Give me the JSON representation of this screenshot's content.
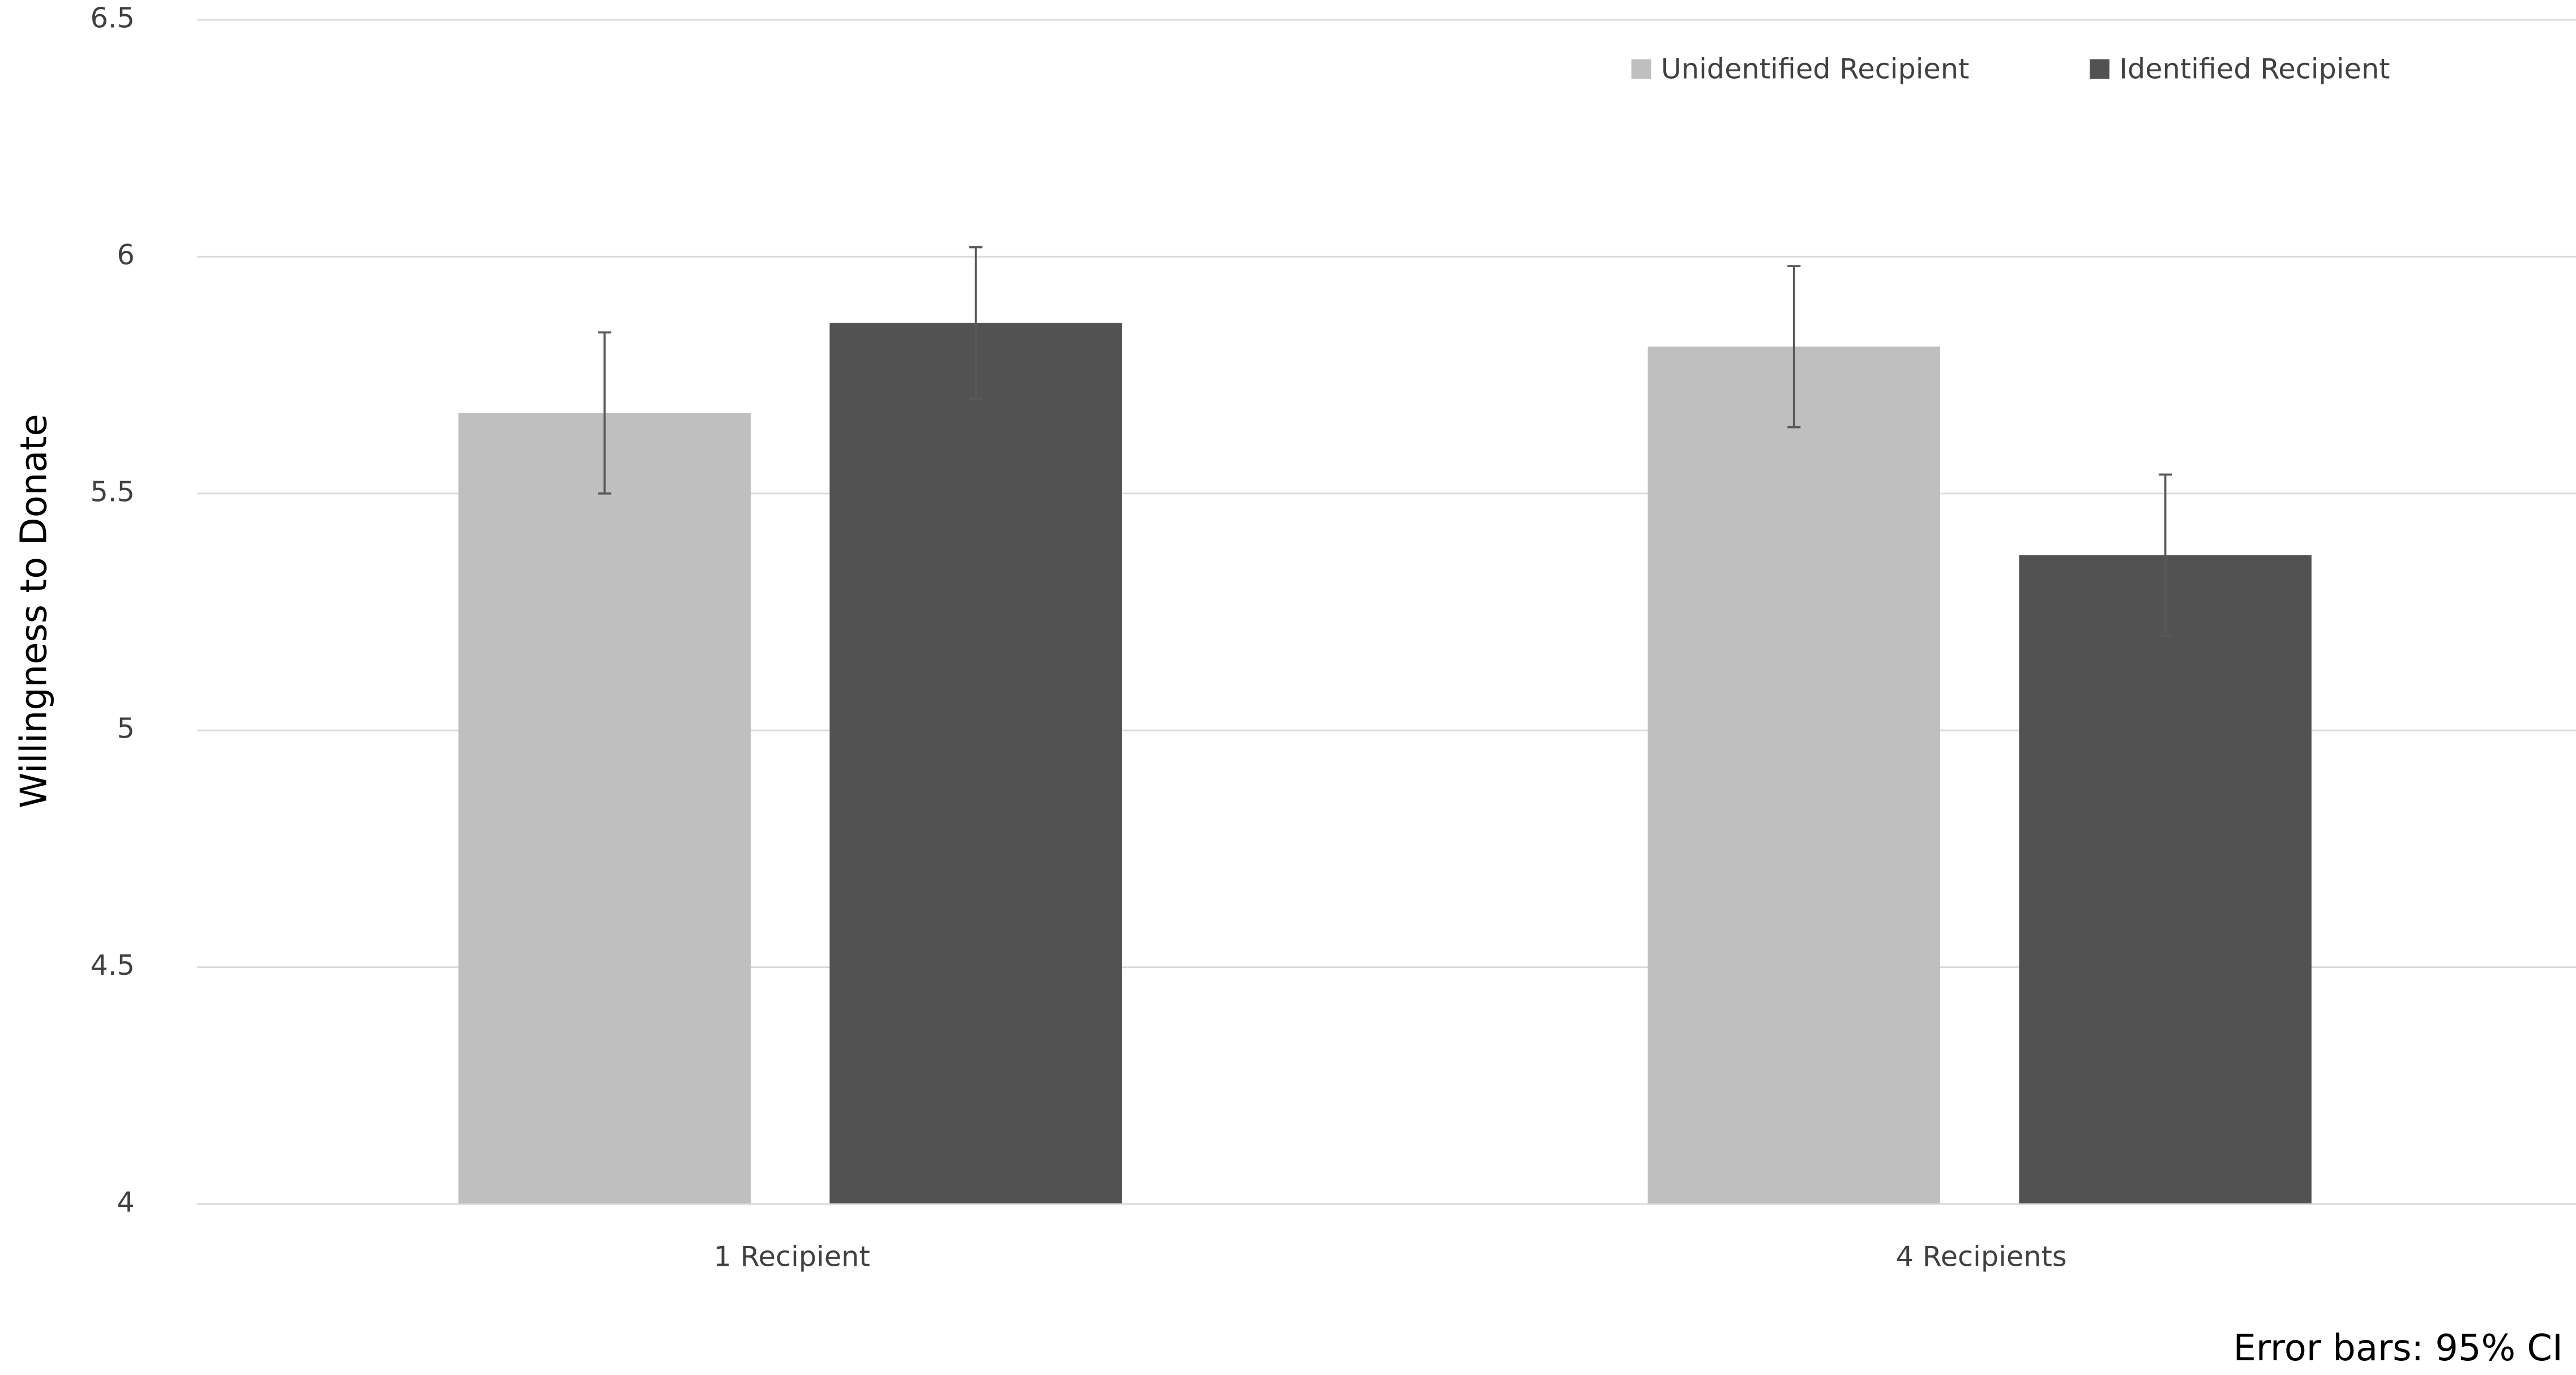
{
  "chart_data": {
    "type": "bar",
    "y_label": "Willingness to Donate",
    "categories": [
      "1 Recipient",
      "4 Recipients"
    ],
    "series": [
      {
        "name": "Unidentified Recipient",
        "color": "#bfbfbf",
        "values": [
          5.67,
          5.81
        ],
        "errors": [
          0.17,
          0.17
        ]
      },
      {
        "name": "Identified Recipient",
        "color": "#525252",
        "values": [
          5.86,
          5.37
        ],
        "errors": [
          0.16,
          0.17
        ]
      }
    ],
    "ylim": [
      4,
      6.5
    ],
    "yticks": [
      4,
      4.5,
      5,
      5.5,
      6,
      6.5
    ],
    "grid": true,
    "legend": "top-right",
    "annotation": "Error bars: 95% CI"
  }
}
